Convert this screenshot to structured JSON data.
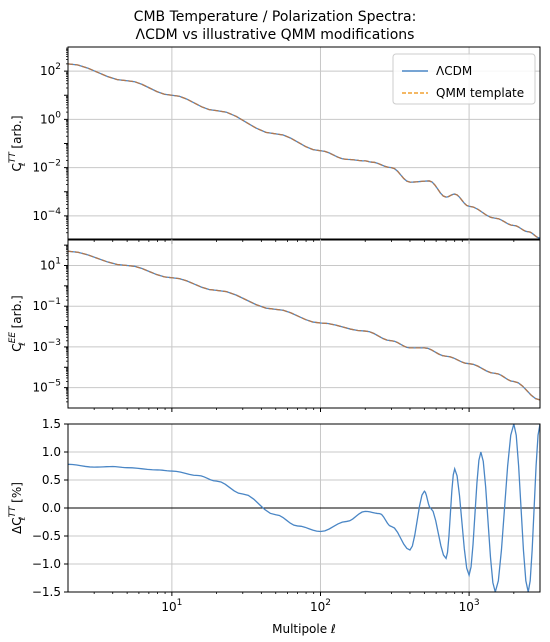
{
  "figure": {
    "title_line1": "CMB Temperature / Polarization Spectra:",
    "title_line2": "ΛCDM vs illustrative QMM modifications"
  },
  "colors": {
    "lcdm": "#4a86c5",
    "qmm": "#f0a030",
    "overlap": "#b07850",
    "delta": "#4a86c5",
    "grid": "#c8c8c8"
  },
  "chart_data": [
    {
      "type": "line",
      "panel": "TT",
      "ylabel_main": "C",
      "ylabel_sub": "ℓ",
      "ylabel_sup": "TT",
      "ylabel_unit": "[arb.]",
      "xscale": "log",
      "yscale": "log",
      "xlim": [
        2,
        3000
      ],
      "ylim": [
        1e-05,
        1000
      ],
      "yticks": [
        {
          "value": 100,
          "base": "10",
          "exp": "2"
        },
        {
          "value": 1,
          "base": "10",
          "exp": "0"
        },
        {
          "value": 0.01,
          "base": "10",
          "exp": "−2"
        },
        {
          "value": 0.0001,
          "base": "10",
          "exp": "−4"
        }
      ],
      "legend": {
        "position": "top-right",
        "entries": [
          "ΛCDM",
          "QMM template"
        ]
      },
      "series": [
        {
          "name": "ΛCDM",
          "style": "solid",
          "x": [
            2,
            5,
            10,
            20,
            50,
            100,
            150,
            200,
            220,
            300,
            400,
            540,
            700,
            800,
            1000,
            1500,
            2000,
            2500,
            3000
          ],
          "y": [
            200,
            40,
            10,
            2.3,
            0.25,
            0.05,
            0.022,
            0.019,
            0.017,
            0.01,
            0.0025,
            0.0028,
            0.0006,
            0.0008,
            0.00025,
            8e-05,
            4e-05,
            2.2e-05,
            1.2e-05
          ]
        },
        {
          "name": "QMM template",
          "style": "dashed",
          "x": [
            2,
            5,
            10,
            20,
            50,
            100,
            150,
            200,
            220,
            300,
            400,
            540,
            700,
            800,
            1000,
            1500,
            2000,
            2500,
            3000
          ],
          "y": [
            200,
            40,
            10,
            2.3,
            0.25,
            0.05,
            0.022,
            0.019,
            0.017,
            0.01,
            0.0025,
            0.0028,
            0.0006,
            0.0008,
            0.00025,
            8e-05,
            4e-05,
            2.2e-05,
            1.2e-05
          ]
        }
      ]
    },
    {
      "type": "line",
      "panel": "EE",
      "ylabel_main": "C",
      "ylabel_sub": "ℓ",
      "ylabel_sup": "EE",
      "ylabel_unit": "[arb.]",
      "xscale": "log",
      "yscale": "log",
      "xlim": [
        2,
        3000
      ],
      "ylim": [
        1e-06,
        200
      ],
      "yticks": [
        {
          "value": 10,
          "base": "10",
          "exp": "1"
        },
        {
          "value": 0.1,
          "base": "10",
          "exp": "−1"
        },
        {
          "value": 0.001,
          "base": "10",
          "exp": "−3"
        },
        {
          "value": 1e-05,
          "base": "10",
          "exp": "−5"
        }
      ],
      "series": [
        {
          "name": "ΛCDM",
          "style": "solid",
          "x": [
            2,
            5,
            10,
            20,
            50,
            100,
            200,
            300,
            400,
            500,
            700,
            1000,
            1500,
            2000,
            3000
          ],
          "y": [
            50,
            10,
            2.5,
            0.6,
            0.07,
            0.015,
            0.006,
            0.002,
            0.0009,
            0.0009,
            0.00035,
            0.00015,
            5e-05,
            2e-05,
            2.5e-06
          ]
        },
        {
          "name": "QMM template",
          "style": "dashed",
          "x": [
            2,
            5,
            10,
            20,
            50,
            100,
            200,
            300,
            400,
            500,
            700,
            1000,
            1500,
            2000,
            3000
          ],
          "y": [
            50,
            10,
            2.5,
            0.6,
            0.07,
            0.015,
            0.006,
            0.002,
            0.0009,
            0.0009,
            0.00035,
            0.00015,
            5e-05,
            2e-05,
            2.5e-06
          ]
        }
      ]
    },
    {
      "type": "line",
      "panel": "delta",
      "ylabel_main": "ΔC",
      "ylabel_sub": "ℓ",
      "ylabel_sup": "TT",
      "ylabel_unit": "[%]",
      "xlabel": "Multipole ℓ",
      "xscale": "log",
      "yscale": "linear",
      "xlim": [
        2,
        3000
      ],
      "ylim": [
        -1.5,
        1.5
      ],
      "yticks": [
        {
          "value": 1.5,
          "label": "1.5"
        },
        {
          "value": 1.0,
          "label": "1.0"
        },
        {
          "value": 0.5,
          "label": "0.5"
        },
        {
          "value": 0.0,
          "label": "0.0"
        },
        {
          "value": -0.5,
          "label": "−0.5"
        },
        {
          "value": -1.0,
          "label": "−1.0"
        },
        {
          "value": -1.5,
          "label": "−1.5"
        }
      ],
      "xticks": [
        {
          "value": 10,
          "base": "10",
          "exp": "1"
        },
        {
          "value": 100,
          "base": "10",
          "exp": "2"
        },
        {
          "value": 1000,
          "base": "10",
          "exp": "3"
        }
      ],
      "hline": 0,
      "series": [
        {
          "name": "ΔC_TT",
          "style": "solid",
          "x": [
            2,
            3,
            4,
            5,
            8,
            10,
            15,
            20,
            30,
            50,
            70,
            100,
            150,
            200,
            250,
            300,
            400,
            500,
            550,
            700,
            800,
            1000,
            1200,
            1500,
            2000,
            2500,
            3000
          ],
          "y": [
            0.78,
            0.73,
            0.74,
            0.72,
            0.68,
            0.66,
            0.58,
            0.48,
            0.25,
            -0.12,
            -0.32,
            -0.42,
            -0.24,
            -0.06,
            -0.1,
            -0.33,
            -0.75,
            0.3,
            0.0,
            -0.9,
            0.7,
            -1.2,
            1.0,
            -1.5,
            1.5,
            -1.5,
            1.5
          ]
        }
      ]
    }
  ]
}
